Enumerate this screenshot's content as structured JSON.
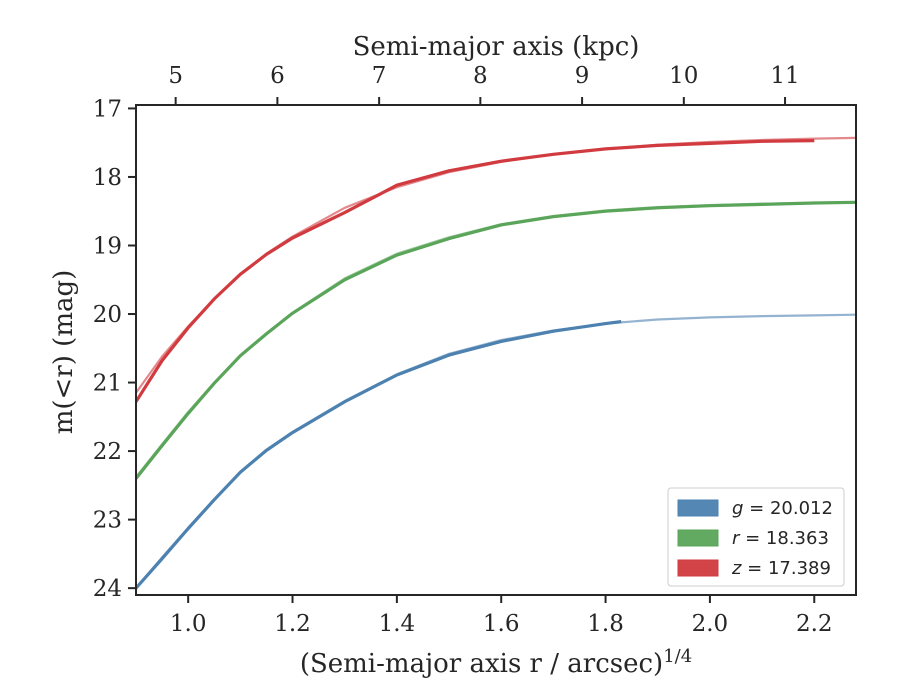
{
  "chart_data": {
    "type": "line",
    "xlabel": "(Semi-major axis r / arcsec)",
    "xlabel_sup": "1/4",
    "ylabel": "m(<r) (mag)",
    "top_xlabel": "Semi-major axis (kpc)",
    "xlim": [
      0.9,
      2.28
    ],
    "ylim": [
      24.1,
      16.95
    ],
    "y_inverted": true,
    "x_ticks": [
      1.0,
      1.2,
      1.4,
      1.6,
      1.8,
      2.0,
      2.2
    ],
    "x_tick_labels": [
      "1.0",
      "1.2",
      "1.4",
      "1.6",
      "1.8",
      "2.0",
      "2.2"
    ],
    "y_ticks": [
      17,
      18,
      19,
      20,
      21,
      22,
      23,
      24
    ],
    "y_tick_labels": [
      "17",
      "18",
      "19",
      "20",
      "21",
      "22",
      "23",
      "24"
    ],
    "top_ticks_kpc": [
      5,
      6,
      7,
      8,
      9,
      10,
      11
    ],
    "top_tick_labels": [
      "5",
      "6",
      "7",
      "8",
      "9",
      "10",
      "11"
    ],
    "top_tick_positions_x": [
      0.976,
      1.171,
      1.366,
      1.56,
      1.755,
      1.95,
      2.144
    ],
    "legend_position": "lower-right",
    "series": [
      {
        "name": "g = 20.012",
        "legend_var": "g",
        "legend_value": "= 20.012",
        "color": "#4c81b0",
        "model_x": [
          0.9,
          0.95,
          1.0,
          1.05,
          1.1,
          1.15,
          1.2,
          1.3,
          1.4,
          1.5,
          1.6,
          1.7,
          1.8,
          1.9,
          2.0,
          2.1,
          2.2,
          2.28
        ],
        "model_y": [
          24.0,
          23.55,
          23.12,
          22.7,
          22.3,
          21.98,
          21.72,
          21.27,
          20.88,
          20.58,
          20.38,
          20.24,
          20.14,
          20.08,
          20.05,
          20.03,
          20.02,
          20.01
        ],
        "data_x": [
          0.9,
          0.95,
          1.0,
          1.05,
          1.1,
          1.15,
          1.2,
          1.3,
          1.4,
          1.5,
          1.6,
          1.7,
          1.8,
          1.83
        ],
        "data_y": [
          24.0,
          23.57,
          23.13,
          22.71,
          22.31,
          21.99,
          21.73,
          21.28,
          20.89,
          20.6,
          20.4,
          20.25,
          20.14,
          20.11
        ]
      },
      {
        "name": "r = 18.363",
        "legend_var": "r",
        "legend_value": "= 18.363",
        "color": "#5aa55a",
        "model_x": [
          0.9,
          0.95,
          1.0,
          1.05,
          1.1,
          1.15,
          1.2,
          1.3,
          1.4,
          1.5,
          1.6,
          1.7,
          1.8,
          1.9,
          2.0,
          2.1,
          2.2,
          2.28
        ],
        "model_y": [
          22.38,
          21.9,
          21.43,
          21.0,
          20.6,
          20.28,
          19.98,
          19.48,
          19.12,
          18.88,
          18.69,
          18.57,
          18.49,
          18.44,
          18.41,
          18.39,
          18.38,
          18.37
        ],
        "data_x": [
          0.9,
          0.95,
          1.0,
          1.05,
          1.1,
          1.15,
          1.2,
          1.3,
          1.4,
          1.5,
          1.6,
          1.7,
          1.8,
          1.9,
          2.0,
          2.1,
          2.2,
          2.28
        ],
        "data_y": [
          22.4,
          21.92,
          21.45,
          21.01,
          20.61,
          20.29,
          19.99,
          19.5,
          19.14,
          18.9,
          18.7,
          18.58,
          18.5,
          18.45,
          18.42,
          18.4,
          18.38,
          18.37
        ]
      },
      {
        "name": "z = 17.389",
        "legend_var": "z",
        "legend_value": "= 17.389",
        "color": "#d13a3f",
        "model_x": [
          0.9,
          0.95,
          1.0,
          1.05,
          1.1,
          1.15,
          1.2,
          1.3,
          1.4,
          1.5,
          1.6,
          1.7,
          1.8,
          1.9,
          2.0,
          2.1,
          2.2,
          2.28
        ],
        "model_y": [
          21.15,
          20.62,
          20.18,
          19.78,
          19.42,
          19.12,
          18.87,
          18.45,
          18.15,
          17.93,
          17.78,
          17.67,
          17.59,
          17.53,
          17.49,
          17.46,
          17.44,
          17.43
        ],
        "data_x": [
          0.9,
          0.95,
          1.0,
          1.05,
          1.1,
          1.15,
          1.2,
          1.3,
          1.4,
          1.5,
          1.6,
          1.7,
          1.8,
          1.9,
          2.0,
          2.1,
          2.2
        ],
        "data_y": [
          21.28,
          20.68,
          20.2,
          19.78,
          19.42,
          19.13,
          18.89,
          18.52,
          18.12,
          17.91,
          17.77,
          17.67,
          17.59,
          17.54,
          17.51,
          17.48,
          17.47
        ]
      }
    ]
  }
}
